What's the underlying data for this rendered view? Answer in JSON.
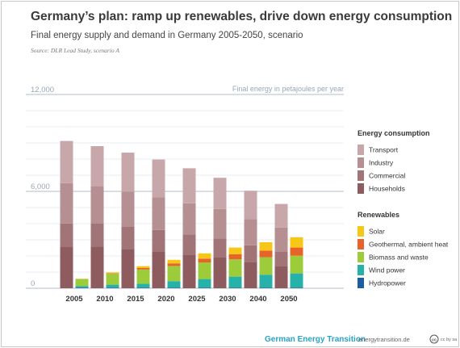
{
  "header": {
    "title": "Germany’s plan: ramp up renewables, drive down energy consumption",
    "subtitle": "Final energy supply and demand in Germany 2005-2050, scenario",
    "source": "Source: DLR Lead Study, scenario A"
  },
  "colors": {
    "transport": "#c8a7ab",
    "industry": "#b68f93",
    "commercial": "#a17478",
    "households": "#8e5b5f",
    "solar": "#f7c717",
    "geothermal": "#e8632a",
    "biomass": "#9ccc3a",
    "wind": "#27b2a9",
    "hydro": "#1b5ea4",
    "grid": "#e3e7ec",
    "axis": "#9aa6b6"
  },
  "chart_data": {
    "type": "bar",
    "title": "Germany’s plan: ramp up renewables, drive down energy consumption",
    "subtitle": "Final energy supply and demand in Germany 2005-2050, scenario",
    "ylabel": "Final energy in petajoules per year",
    "ylim": [
      0,
      12000
    ],
    "yticks": [
      "0",
      "6,000",
      "12,000"
    ],
    "grid": true,
    "legend_position": "right",
    "categories": [
      "2005",
      "2010",
      "2015",
      "2020",
      "2025",
      "2030",
      "2040",
      "2050"
    ],
    "groups": [
      {
        "name": "Energy consumption",
        "series": [
          {
            "name": "Households",
            "key": "households",
            "values": [
              2550,
              2580,
              2440,
              2280,
              2080,
              1920,
              1620,
              1370
            ]
          },
          {
            "name": "Commercial",
            "key": "commercial",
            "values": [
              1460,
              1420,
              1380,
              1330,
              1260,
              1160,
              1040,
              900
            ]
          },
          {
            "name": "Industry",
            "key": "industry",
            "values": [
              2500,
              2300,
              2160,
              2030,
              1920,
              1830,
              1630,
              1490
            ]
          },
          {
            "name": "Transport",
            "key": "transport",
            "values": [
              2610,
              2500,
              2420,
              2330,
              2170,
              1930,
              1750,
              1460
            ]
          }
        ]
      },
      {
        "name": "Renewables",
        "series": [
          {
            "name": "Hydropower",
            "key": "hydro",
            "values": [
              40,
              40,
              40,
              40,
              40,
              40,
              40,
              40
            ]
          },
          {
            "name": "Wind power",
            "key": "wind",
            "values": [
              100,
              180,
              240,
              400,
              530,
              680,
              800,
              880
            ]
          },
          {
            "name": "Biomass and waste",
            "key": "biomass",
            "values": [
              420,
              670,
              880,
              940,
              1030,
              1070,
              1080,
              1100
            ]
          },
          {
            "name": "Geothermal, ambient heat",
            "key": "geothermal",
            "values": [
              10,
              30,
              90,
              160,
              230,
              310,
              410,
              500
            ]
          },
          {
            "name": "Solar",
            "key": "solar",
            "values": [
              20,
              60,
              120,
              220,
              330,
              420,
              520,
              640
            ]
          }
        ]
      }
    ]
  },
  "legend": {
    "consumption_title": "Energy consumption",
    "consumption_items": [
      {
        "label": "Transport",
        "color_key": "transport"
      },
      {
        "label": "Industry",
        "color_key": "industry"
      },
      {
        "label": "Commercial",
        "color_key": "commercial"
      },
      {
        "label": "Households",
        "color_key": "households"
      }
    ],
    "renewables_title": "Renewables",
    "renewables_items": [
      {
        "label": "Solar",
        "color_key": "solar"
      },
      {
        "label": "Geothermal, ambient heat",
        "color_key": "geothermal"
      },
      {
        "label": "Biomass and waste",
        "color_key": "biomass"
      },
      {
        "label": "Wind power",
        "color_key": "wind"
      },
      {
        "label": "Hydropower",
        "color_key": "hydro"
      }
    ]
  },
  "footer": {
    "brand": "German Energy Transition",
    "url": "energytransition.de",
    "license": "cc by sa",
    "license_icon": "creative-commons-icon"
  }
}
